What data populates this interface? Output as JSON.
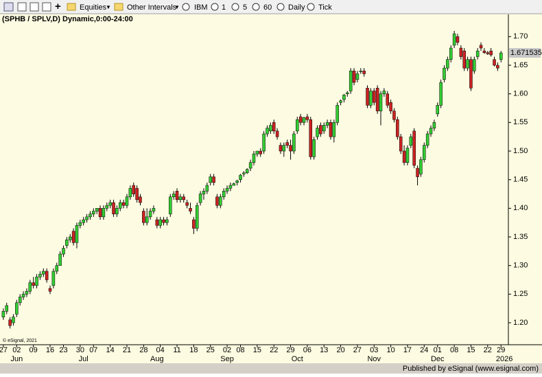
{
  "toolbar": [
    "Equities",
    "Other Intervals",
    "IBM",
    "1",
    "5",
    "60",
    "Daily",
    "Tick"
  ],
  "footer": "Published by eSignal (www.esignal.com)",
  "chart_data": {
    "type": "candlestick",
    "title": "(SPHB / SPLV,D) Dynamic,0:00-24:00",
    "watermark": "© eSignal, 2021",
    "last_value": 1.671535,
    "up_color": "#33cc33",
    "down_color": "#cc2222",
    "xlim": [
      -1,
      151
    ],
    "ylim": [
      1.164,
      1.74
    ],
    "yticks": [
      {
        "value": 1.2,
        "label": "1.20"
      },
      {
        "value": 1.25,
        "label": "1.25"
      },
      {
        "value": 1.3,
        "label": "1.30"
      },
      {
        "value": 1.35,
        "label": "1.35"
      },
      {
        "value": 1.4,
        "label": "1.40"
      },
      {
        "value": 1.45,
        "label": "1.45"
      },
      {
        "value": 1.5,
        "label": "1.50"
      },
      {
        "value": 1.55,
        "label": "1.55"
      },
      {
        "value": 1.6,
        "label": "1.60"
      },
      {
        "value": 1.65,
        "label": "1.65"
      },
      {
        "value": 1.7,
        "label": "1.70"
      }
    ],
    "xticks": [
      {
        "value": 0,
        "label": "27"
      },
      {
        "value": 4,
        "label": "02"
      },
      {
        "value": 9,
        "label": "09"
      },
      {
        "value": 14,
        "label": "16"
      },
      {
        "value": 18,
        "label": "23"
      },
      {
        "value": 23,
        "label": "30"
      },
      {
        "value": 27,
        "label": "07"
      },
      {
        "value": 32,
        "label": "14"
      },
      {
        "value": 37,
        "label": "21"
      },
      {
        "value": 42,
        "label": "28"
      },
      {
        "value": 47,
        "label": "04"
      },
      {
        "value": 52,
        "label": "11"
      },
      {
        "value": 57,
        "label": "18"
      },
      {
        "value": 62,
        "label": "25"
      },
      {
        "value": 67,
        "label": "02"
      },
      {
        "value": 71,
        "label": "08"
      },
      {
        "value": 76,
        "label": "15"
      },
      {
        "value": 81,
        "label": "22"
      },
      {
        "value": 86,
        "label": "29"
      },
      {
        "value": 91,
        "label": "06"
      },
      {
        "value": 96,
        "label": "13"
      },
      {
        "value": 101,
        "label": "20"
      },
      {
        "value": 106,
        "label": "27"
      },
      {
        "value": 111,
        "label": "03"
      },
      {
        "value": 116,
        "label": "10"
      },
      {
        "value": 121,
        "label": "17"
      },
      {
        "value": 126,
        "label": "24"
      },
      {
        "value": 130,
        "label": "01"
      },
      {
        "value": 135,
        "label": "08"
      },
      {
        "value": 140,
        "label": "15"
      },
      {
        "value": 145,
        "label": "22"
      },
      {
        "value": 149,
        "label": "29"
      }
    ],
    "month_labels": [
      {
        "value": 4,
        "label": "Jun"
      },
      {
        "value": 24,
        "label": "Jul"
      },
      {
        "value": 46,
        "label": "Aug"
      },
      {
        "value": 67,
        "label": "Sep"
      },
      {
        "value": 88,
        "label": "Oct"
      },
      {
        "value": 111,
        "label": "Nov"
      },
      {
        "value": 130,
        "label": "Dec"
      },
      {
        "value": 150,
        "label": "2026"
      }
    ],
    "series": [
      {
        "name": "SPHB / SPLV",
        "values": [
          [
            1.21,
            1.225,
            1.205,
            1.22
          ],
          [
            1.22,
            1.235,
            1.215,
            1.23
          ],
          [
            1.205,
            1.21,
            1.19,
            1.195
          ],
          [
            1.2,
            1.215,
            1.195,
            1.21
          ],
          [
            1.215,
            1.24,
            1.21,
            1.235
          ],
          [
            1.235,
            1.25,
            1.23,
            1.245
          ],
          [
            1.245,
            1.255,
            1.24,
            1.25
          ],
          [
            1.25,
            1.26,
            1.245,
            1.255
          ],
          [
            1.255,
            1.275,
            1.25,
            1.27
          ],
          [
            1.27,
            1.28,
            1.26,
            1.265
          ],
          [
            1.265,
            1.285,
            1.26,
            1.28
          ],
          [
            1.28,
            1.29,
            1.275,
            1.285
          ],
          [
            1.285,
            1.295,
            1.28,
            1.29
          ],
          [
            1.29,
            1.295,
            1.27,
            1.275
          ],
          [
            1.26,
            1.265,
            1.25,
            1.255
          ],
          [
            1.265,
            1.295,
            1.26,
            1.29
          ],
          [
            1.29,
            1.305,
            1.285,
            1.3
          ],
          [
            1.3,
            1.325,
            1.3,
            1.32
          ],
          [
            1.32,
            1.335,
            1.315,
            1.33
          ],
          [
            1.335,
            1.35,
            1.33,
            1.345
          ],
          [
            1.345,
            1.355,
            1.34,
            1.35
          ],
          [
            1.36,
            1.365,
            1.335,
            1.34
          ],
          [
            1.34,
            1.375,
            1.33,
            1.37
          ],
          [
            1.37,
            1.38,
            1.365,
            1.375
          ],
          [
            1.375,
            1.385,
            1.37,
            1.38
          ],
          [
            1.38,
            1.39,
            1.375,
            1.385
          ],
          [
            1.385,
            1.395,
            1.38,
            1.39
          ],
          [
            1.39,
            1.4,
            1.385,
            1.395
          ],
          [
            1.395,
            1.4,
            1.39,
            1.4
          ],
          [
            1.4,
            1.405,
            1.38,
            1.385
          ],
          [
            1.385,
            1.405,
            1.38,
            1.4
          ],
          [
            1.4,
            1.41,
            1.395,
            1.405
          ],
          [
            1.405,
            1.415,
            1.4,
            1.41
          ],
          [
            1.41,
            1.415,
            1.385,
            1.39
          ],
          [
            1.39,
            1.405,
            1.385,
            1.4
          ],
          [
            1.4,
            1.415,
            1.395,
            1.41
          ],
          [
            1.41,
            1.415,
            1.4,
            1.405
          ],
          [
            1.405,
            1.425,
            1.4,
            1.42
          ],
          [
            1.42,
            1.44,
            1.415,
            1.435
          ],
          [
            1.44,
            1.445,
            1.42,
            1.425
          ],
          [
            1.435,
            1.44,
            1.41,
            1.415
          ],
          [
            1.42,
            1.425,
            1.405,
            1.41
          ],
          [
            1.395,
            1.4,
            1.37,
            1.375
          ],
          [
            1.375,
            1.4,
            1.37,
            1.385
          ],
          [
            1.385,
            1.4,
            1.38,
            1.395
          ],
          [
            1.395,
            1.405,
            1.39,
            1.4
          ],
          [
            1.38,
            1.385,
            1.365,
            1.37
          ],
          [
            1.37,
            1.385,
            1.365,
            1.38
          ],
          [
            1.38,
            1.385,
            1.37,
            1.375
          ],
          [
            1.375,
            1.385,
            1.37,
            1.38
          ],
          [
            1.39,
            1.425,
            1.385,
            1.42
          ],
          [
            1.42,
            1.43,
            1.415,
            1.425
          ],
          [
            1.43,
            1.435,
            1.41,
            1.415
          ],
          [
            1.415,
            1.425,
            1.41,
            1.42
          ],
          [
            1.42,
            1.425,
            1.41,
            1.415
          ],
          [
            1.41,
            1.415,
            1.4,
            1.405
          ],
          [
            1.4,
            1.41,
            1.39,
            1.395
          ],
          [
            1.38,
            1.385,
            1.355,
            1.365
          ],
          [
            1.365,
            1.41,
            1.36,
            1.405
          ],
          [
            1.41,
            1.43,
            1.405,
            1.425
          ],
          [
            1.425,
            1.435,
            1.415,
            1.43
          ],
          [
            1.43,
            1.445,
            1.425,
            1.44
          ],
          [
            1.445,
            1.46,
            1.44,
            1.455
          ],
          [
            1.455,
            1.46,
            1.44,
            1.445
          ],
          [
            1.42,
            1.425,
            1.4,
            1.405
          ],
          [
            1.405,
            1.425,
            1.4,
            1.42
          ],
          [
            1.42,
            1.435,
            1.415,
            1.43
          ],
          [
            1.43,
            1.44,
            1.425,
            1.435
          ],
          [
            1.435,
            1.445,
            1.43,
            1.44
          ],
          [
            1.44,
            1.445,
            1.44,
            1.443
          ],
          [
            1.445,
            1.45,
            1.44,
            1.448
          ],
          [
            1.45,
            1.46,
            1.445,
            1.458
          ],
          [
            1.46,
            1.465,
            1.455,
            1.462
          ],
          [
            1.462,
            1.47,
            1.46,
            1.468
          ],
          [
            1.47,
            1.485,
            1.465,
            1.48
          ],
          [
            1.48,
            1.5,
            1.475,
            1.495
          ],
          [
            1.495,
            1.5,
            1.49,
            1.5
          ],
          [
            1.5,
            1.505,
            1.49,
            1.495
          ],
          [
            1.5,
            1.535,
            1.495,
            1.53
          ],
          [
            1.53,
            1.545,
            1.525,
            1.54
          ],
          [
            1.535,
            1.55,
            1.53,
            1.545
          ],
          [
            1.55,
            1.555,
            1.53,
            1.535
          ],
          [
            1.535,
            1.54,
            1.52,
            1.525
          ],
          [
            1.51,
            1.515,
            1.495,
            1.5
          ],
          [
            1.5,
            1.515,
            1.49,
            1.51
          ],
          [
            1.515,
            1.52,
            1.505,
            1.51
          ],
          [
            1.51,
            1.52,
            1.485,
            1.5
          ],
          [
            1.5,
            1.535,
            1.495,
            1.53
          ],
          [
            1.535,
            1.56,
            1.53,
            1.555
          ],
          [
            1.56,
            1.565,
            1.545,
            1.55
          ],
          [
            1.55,
            1.56,
            1.545,
            1.558
          ],
          [
            1.56,
            1.565,
            1.55,
            1.555
          ],
          [
            1.555,
            1.56,
            1.485,
            1.49
          ],
          [
            1.49,
            1.525,
            1.485,
            1.52
          ],
          [
            1.525,
            1.545,
            1.52,
            1.54
          ],
          [
            1.545,
            1.55,
            1.525,
            1.53
          ],
          [
            1.535,
            1.55,
            1.53,
            1.545
          ],
          [
            1.545,
            1.555,
            1.54,
            1.55
          ],
          [
            1.55,
            1.555,
            1.52,
            1.525
          ],
          [
            1.525,
            1.555,
            1.515,
            1.55
          ],
          [
            1.55,
            1.585,
            1.545,
            1.58
          ],
          [
            1.585,
            1.59,
            1.58,
            1.588
          ],
          [
            1.59,
            1.6,
            1.585,
            1.598
          ],
          [
            1.6,
            1.605,
            1.595,
            1.602
          ],
          [
            1.605,
            1.645,
            1.6,
            1.64
          ],
          [
            1.64,
            1.645,
            1.615,
            1.62
          ],
          [
            1.625,
            1.64,
            1.62,
            1.635
          ],
          [
            1.64,
            1.645,
            1.635,
            1.64
          ],
          [
            1.64,
            1.645,
            1.63,
            1.635
          ],
          [
            1.61,
            1.615,
            1.575,
            1.58
          ],
          [
            1.58,
            1.61,
            1.575,
            1.605
          ],
          [
            1.605,
            1.61,
            1.58,
            1.585
          ],
          [
            1.61,
            1.615,
            1.565,
            1.57
          ],
          [
            1.57,
            1.605,
            1.545,
            1.6
          ],
          [
            1.6,
            1.61,
            1.595,
            1.605
          ],
          [
            1.6,
            1.605,
            1.575,
            1.58
          ],
          [
            1.585,
            1.59,
            1.565,
            1.57
          ],
          [
            1.57,
            1.575,
            1.55,
            1.555
          ],
          [
            1.555,
            1.56,
            1.52,
            1.525
          ],
          [
            1.525,
            1.53,
            1.495,
            1.5
          ],
          [
            1.5,
            1.51,
            1.475,
            1.48
          ],
          [
            1.48,
            1.51,
            1.475,
            1.505
          ],
          [
            1.51,
            1.53,
            1.505,
            1.525
          ],
          [
            1.535,
            1.54,
            1.47,
            1.475
          ],
          [
            1.47,
            1.475,
            1.44,
            1.455
          ],
          [
            1.46,
            1.49,
            1.455,
            1.485
          ],
          [
            1.485,
            1.515,
            1.48,
            1.51
          ],
          [
            1.51,
            1.535,
            1.505,
            1.53
          ],
          [
            1.53,
            1.545,
            1.525,
            1.54
          ],
          [
            1.54,
            1.555,
            1.535,
            1.55
          ],
          [
            1.565,
            1.585,
            1.56,
            1.58
          ],
          [
            1.58,
            1.625,
            1.575,
            1.62
          ],
          [
            1.625,
            1.65,
            1.62,
            1.645
          ],
          [
            1.645,
            1.665,
            1.64,
            1.66
          ],
          [
            1.66,
            1.685,
            1.655,
            1.68
          ],
          [
            1.685,
            1.71,
            1.68,
            1.705
          ],
          [
            1.7,
            1.705,
            1.685,
            1.69
          ],
          [
            1.68,
            1.685,
            1.66,
            1.665
          ],
          [
            1.675,
            1.68,
            1.64,
            1.645
          ],
          [
            1.645,
            1.665,
            1.64,
            1.66
          ],
          [
            1.66,
            1.665,
            1.605,
            1.61
          ],
          [
            1.64,
            1.665,
            1.635,
            1.66
          ],
          [
            1.665,
            1.68,
            1.66,
            1.675
          ],
          [
            1.685,
            1.69,
            1.675,
            1.68
          ],
          [
            1.675,
            1.68,
            1.67,
            1.672
          ],
          [
            1.672,
            1.675,
            1.668,
            1.67
          ],
          [
            1.675,
            1.68,
            1.665,
            1.668
          ],
          [
            1.66,
            1.665,
            1.648,
            1.65
          ],
          [
            1.65,
            1.655,
            1.64,
            1.645
          ],
          [
            1.66,
            1.675,
            1.655,
            1.671535
          ]
        ]
      }
    ]
  }
}
